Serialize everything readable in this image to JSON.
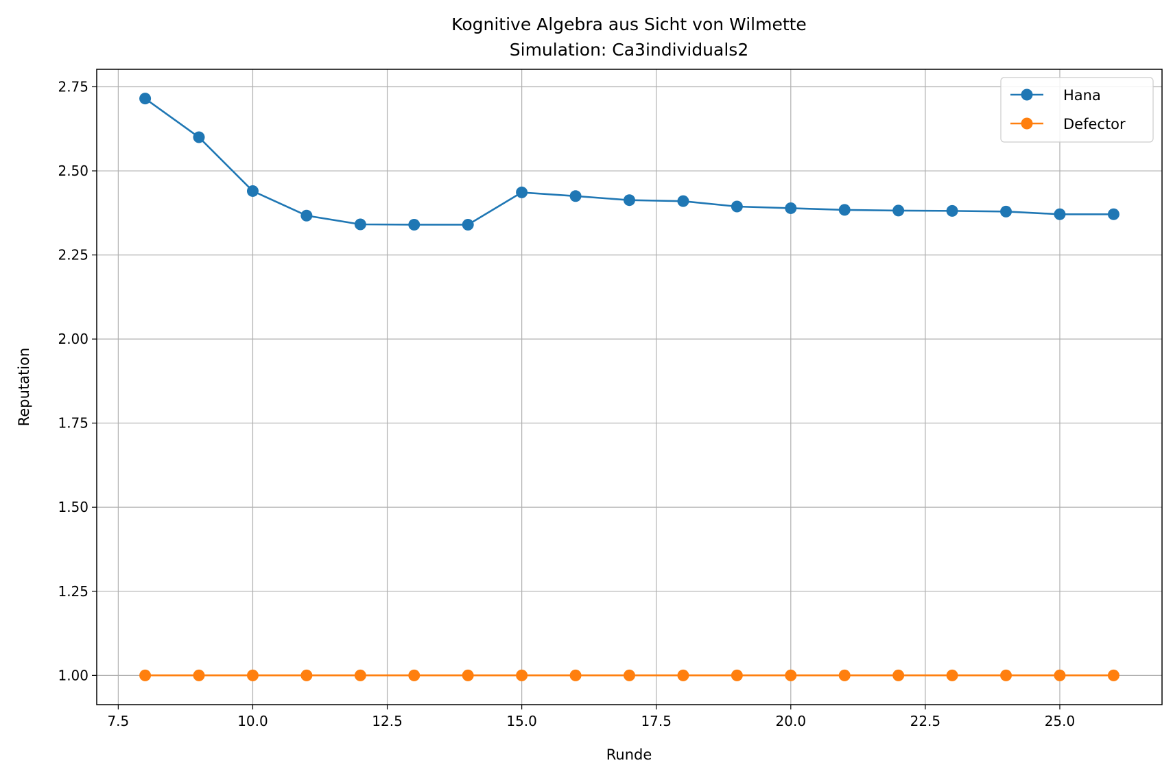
{
  "chart_data": {
    "type": "line",
    "title": "Kognitive Algebra aus Sicht von Wilmette",
    "subtitle": "Simulation: Ca3individuals2",
    "xlabel": "Runde",
    "ylabel": "Reputation",
    "xlim": [
      7.1,
      26.9
    ],
    "ylim": [
      0.913,
      2.802
    ],
    "xticks": [
      7.5,
      10.0,
      12.5,
      15.0,
      17.5,
      20.0,
      22.5,
      25.0
    ],
    "xtick_labels": [
      "7.5",
      "10.0",
      "12.5",
      "15.0",
      "17.5",
      "20.0",
      "22.5",
      "25.0"
    ],
    "yticks": [
      1.0,
      1.25,
      1.5,
      1.75,
      2.0,
      2.25,
      2.5,
      2.75
    ],
    "ytick_labels": [
      "1.00",
      "1.25",
      "1.50",
      "1.75",
      "2.00",
      "2.25",
      "2.50",
      "2.75"
    ],
    "grid": true,
    "legend_position": "top-right",
    "x": [
      8,
      9,
      10,
      11,
      12,
      13,
      14,
      15,
      16,
      17,
      18,
      19,
      20,
      21,
      22,
      23,
      24,
      25,
      26
    ],
    "series": [
      {
        "name": "Hana",
        "color": "#1f77b4",
        "marker": "circle",
        "values": [
          2.715,
          2.6,
          2.44,
          2.367,
          2.341,
          2.34,
          2.34,
          2.436,
          2.425,
          2.413,
          2.41,
          2.394,
          2.389,
          2.384,
          2.382,
          2.381,
          2.379,
          2.371,
          2.371
        ]
      },
      {
        "name": "Defector",
        "color": "#ff7f0e",
        "marker": "circle",
        "values": [
          1.0,
          1.0,
          1.0,
          1.0,
          1.0,
          1.0,
          1.0,
          1.0,
          1.0,
          1.0,
          1.0,
          1.0,
          1.0,
          1.0,
          1.0,
          1.0,
          1.0,
          1.0,
          1.0
        ]
      }
    ]
  }
}
